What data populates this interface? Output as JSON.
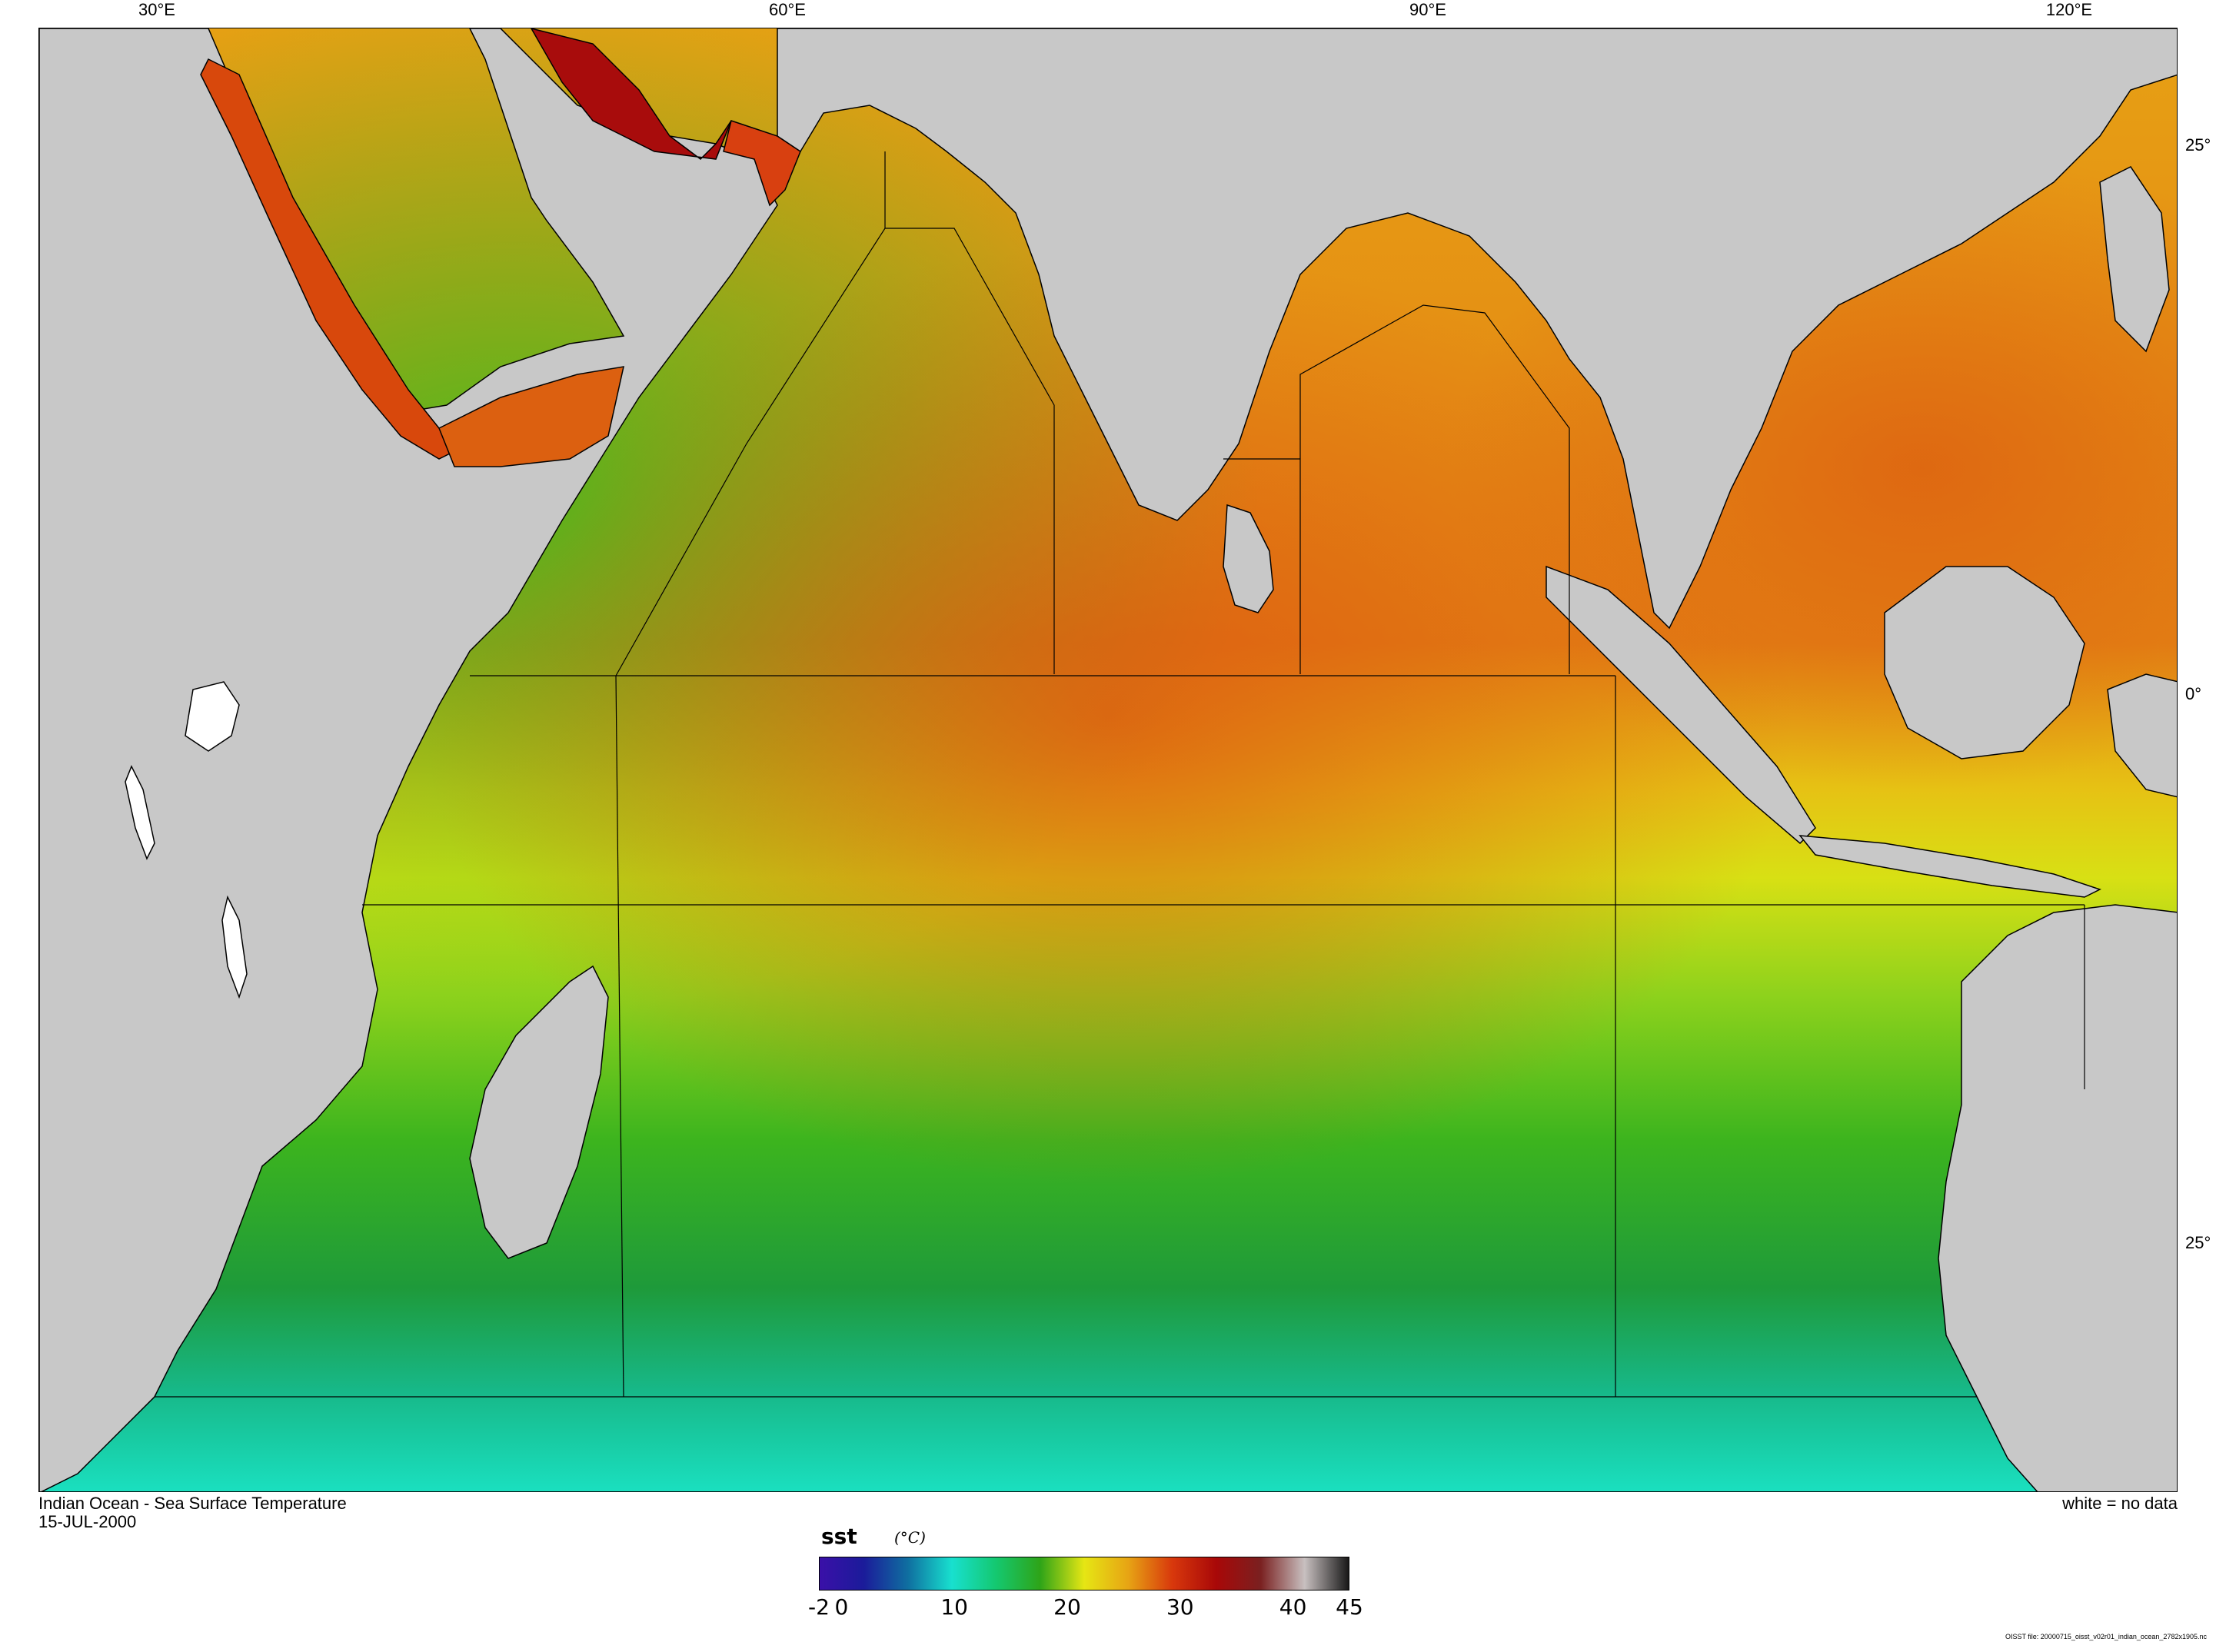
{
  "map": {
    "title": "Indian Ocean - Sea Surface Temperature",
    "date": "15-JUL-2000",
    "no_data_note": "white = no data",
    "file_note": "OISST file: 20000715_oisst_v02r01_indian_ocean_2782x1905.nc",
    "lon_ticks": [
      "30°E",
      "60°E",
      "90°E",
      "120°E"
    ],
    "lat_ticks": [
      "25°",
      "0°",
      "25°"
    ],
    "colors": {
      "land": "#c8c8c8",
      "no_data": "#ffffff",
      "coast": "#000000"
    }
  },
  "colorbar": {
    "variable": "sst",
    "units": "(°C)",
    "tick_labels": [
      "-2",
      "0",
      "10",
      "20",
      "30",
      "40",
      "45"
    ],
    "min": -2,
    "max": 45,
    "stops": [
      "#3a10a8",
      "#1b1b9a",
      "#0f6fa0",
      "#18e0cf",
      "#14c870",
      "#2ea418",
      "#e6e614",
      "#e7a414",
      "#d8380c",
      "#a80808",
      "#7a2020",
      "#c8c0c0",
      "#181818"
    ]
  }
}
